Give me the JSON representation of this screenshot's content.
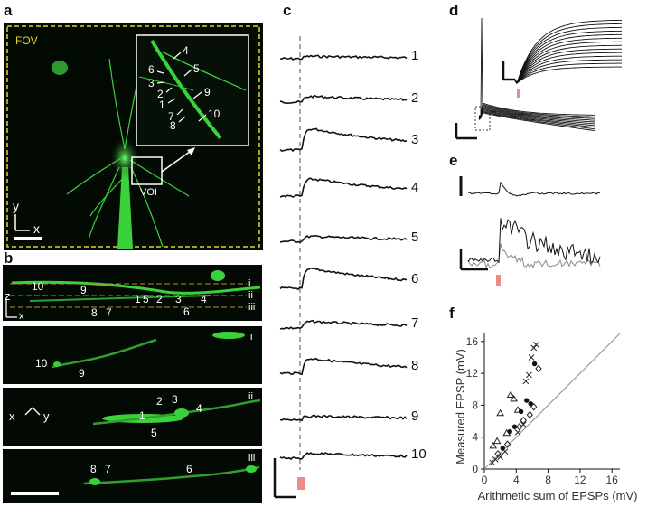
{
  "panels": {
    "a": {
      "label": "a",
      "fov": "FOV",
      "voi": "VOI",
      "inset_markers": [
        "4",
        "6",
        "3",
        "5",
        "2",
        "1",
        "9",
        "7",
        "8",
        "10"
      ],
      "axis_y": "y",
      "axis_x": "x"
    },
    "b": {
      "label": "b",
      "axis_z": "z",
      "axis_x": "x",
      "top_numbers": [
        "10",
        "9",
        "8",
        "7",
        "1",
        "5",
        "2",
        "3",
        "4",
        "6"
      ],
      "slice_labels": [
        "i",
        "ii",
        "iii"
      ],
      "sub_i": {
        "tag": "i",
        "numbers": [
          "10",
          "9"
        ]
      },
      "sub_ii": {
        "tag": "ii",
        "numbers": [
          "2",
          "3",
          "4",
          "1",
          "5"
        ],
        "axis_x": "x",
        "axis_y": "y"
      },
      "sub_iii": {
        "tag": "iii",
        "numbers": [
          "8",
          "7",
          "6"
        ]
      }
    },
    "c": {
      "label": "c",
      "trace_labels": [
        "1",
        "2",
        "3",
        "4",
        "5",
        "6",
        "7",
        "8",
        "9",
        "10"
      ]
    },
    "d": {
      "label": "d"
    },
    "e": {
      "label": "e"
    },
    "f": {
      "label": "f"
    }
  },
  "colors": {
    "fluorescence": "#3bd13b",
    "fov_border": "#e6d22a",
    "dashed_guides": "#b38a2a",
    "stim_marker": "#f08a8a",
    "trace": "#111111",
    "grey_trace": "#8a8a8a",
    "unity_line": "#9a9a9a"
  },
  "chart_data": {
    "type": "scatter",
    "xlabel": "Arithmetic sum of EPSPs (mV)",
    "ylabel": "Measured EPSP (mV)",
    "xlim": [
      0,
      17
    ],
    "ylim": [
      0,
      17
    ],
    "x_ticks": [
      "0",
      "4",
      "8",
      "12",
      "16"
    ],
    "y_ticks": [
      "0",
      "4",
      "8",
      "12",
      "16"
    ],
    "grid": false,
    "unity_line": true,
    "series": [
      {
        "marker": "cross",
        "points": [
          [
            1.0,
            0.8
          ],
          [
            1.4,
            1.2
          ],
          [
            2.0,
            1.5
          ],
          [
            2.6,
            2.2
          ],
          [
            4.2,
            4.6
          ],
          [
            4.9,
            5.6
          ],
          [
            5.2,
            11.0
          ],
          [
            5.6,
            11.8
          ],
          [
            5.9,
            14.0
          ],
          [
            6.2,
            15.2
          ],
          [
            6.5,
            15.6
          ]
        ]
      },
      {
        "marker": "triangle",
        "points": [
          [
            1.1,
            2.9
          ],
          [
            1.6,
            3.5
          ],
          [
            2.8,
            4.5
          ],
          [
            3.3,
            9.3
          ],
          [
            3.7,
            8.8
          ],
          [
            4.2,
            7.4
          ],
          [
            2.0,
            7.0
          ]
        ]
      },
      {
        "marker": "dot",
        "points": [
          [
            2.3,
            2.6
          ],
          [
            3.2,
            4.7
          ],
          [
            3.8,
            5.3
          ],
          [
            4.6,
            7.2
          ],
          [
            5.3,
            8.6
          ],
          [
            5.8,
            8.2
          ],
          [
            6.3,
            13.2
          ]
        ]
      },
      {
        "marker": "diamond",
        "points": [
          [
            1.7,
            1.9
          ],
          [
            2.9,
            3.1
          ],
          [
            4.4,
            5.3
          ],
          [
            4.9,
            6.1
          ],
          [
            5.7,
            6.8
          ],
          [
            6.2,
            7.8
          ],
          [
            6.8,
            12.6
          ]
        ]
      }
    ]
  }
}
